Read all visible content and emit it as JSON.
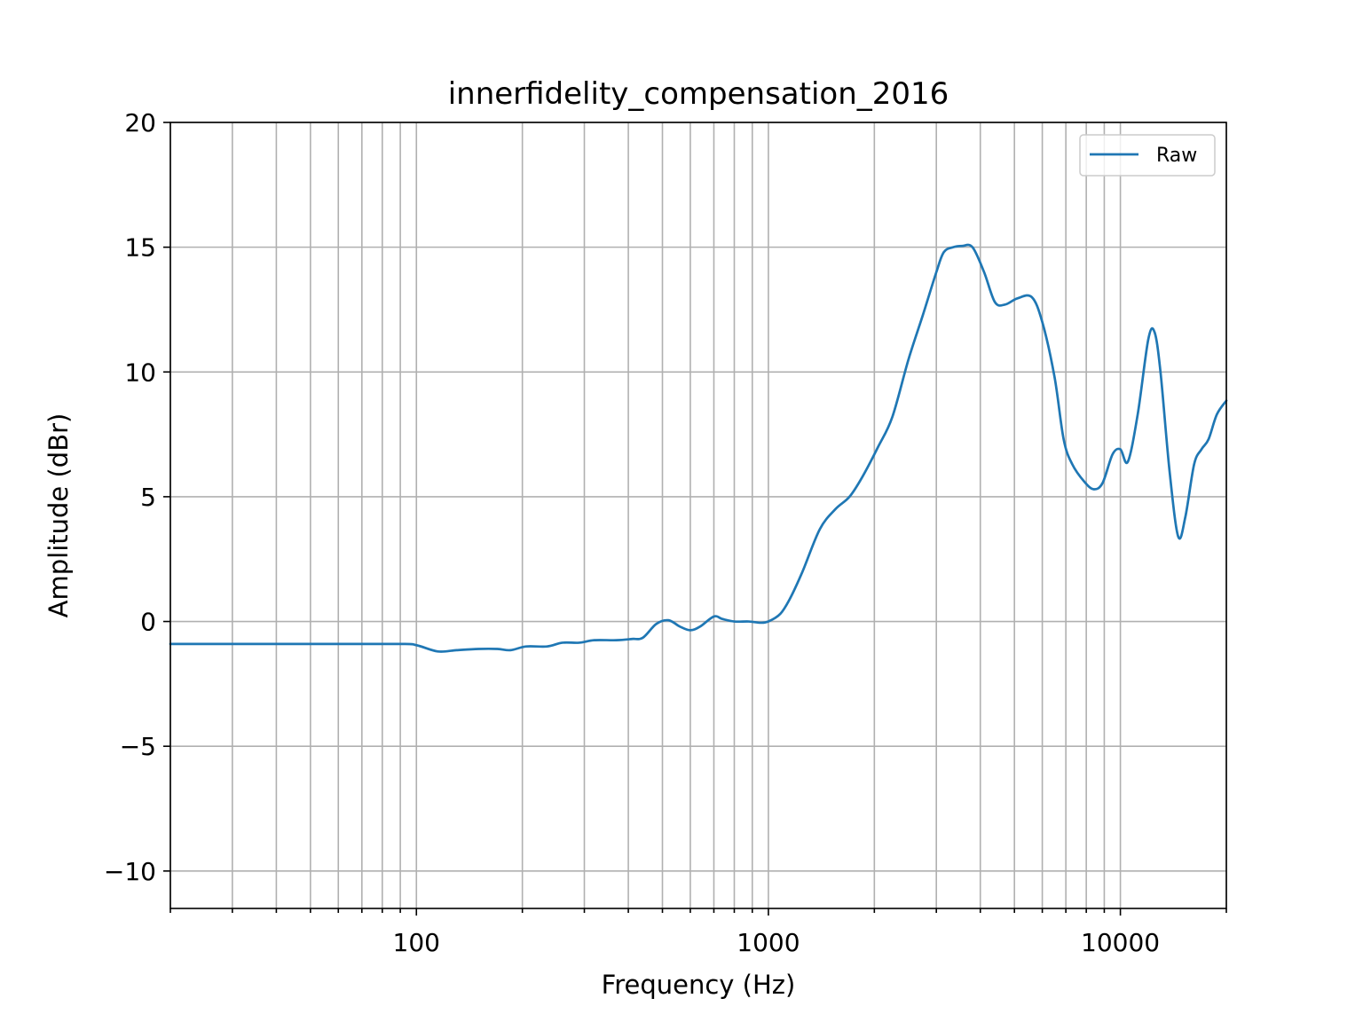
{
  "chart_data": {
    "type": "line",
    "title": "innerfidelity_compensation_2016",
    "xlabel": "Frequency (Hz)",
    "ylabel": "Amplitude (dBr)",
    "xscale": "log",
    "xlim": [
      20,
      20000
    ],
    "ylim": [
      -11.5,
      20
    ],
    "grid": true,
    "legend": {
      "position": "upper-right"
    },
    "x_tick_labels": [
      "100",
      "1000",
      "10000"
    ],
    "y_tick_labels": [
      "−10",
      "−5",
      "0",
      "5",
      "10",
      "15",
      "20"
    ],
    "colors": {
      "series": "#1f77b4",
      "grid": "#b0b0b0"
    },
    "series": [
      {
        "name": "Raw",
        "points": [
          [
            20,
            -0.9
          ],
          [
            50,
            -0.9
          ],
          [
            90,
            -0.9
          ],
          [
            100,
            -0.95
          ],
          [
            115,
            -1.2
          ],
          [
            130,
            -1.15
          ],
          [
            150,
            -1.1
          ],
          [
            170,
            -1.1
          ],
          [
            185,
            -1.15
          ],
          [
            205,
            -1.0
          ],
          [
            235,
            -1.0
          ],
          [
            260,
            -0.85
          ],
          [
            290,
            -0.85
          ],
          [
            320,
            -0.75
          ],
          [
            370,
            -0.75
          ],
          [
            410,
            -0.7
          ],
          [
            440,
            -0.65
          ],
          [
            480,
            -0.1
          ],
          [
            520,
            0.05
          ],
          [
            560,
            -0.2
          ],
          [
            600,
            -0.35
          ],
          [
            640,
            -0.2
          ],
          [
            700,
            0.2
          ],
          [
            740,
            0.1
          ],
          [
            800,
            0.0
          ],
          [
            880,
            0.0
          ],
          [
            950,
            -0.05
          ],
          [
            1000,
            0.0
          ],
          [
            1080,
            0.3
          ],
          [
            1150,
            0.9
          ],
          [
            1250,
            2.0
          ],
          [
            1400,
            3.7
          ],
          [
            1550,
            4.5
          ],
          [
            1700,
            5.0
          ],
          [
            1850,
            5.8
          ],
          [
            2050,
            7.0
          ],
          [
            2250,
            8.2
          ],
          [
            2500,
            10.5
          ],
          [
            2750,
            12.3
          ],
          [
            3000,
            14.0
          ],
          [
            3150,
            14.8
          ],
          [
            3350,
            15.0
          ],
          [
            3550,
            15.05
          ],
          [
            3800,
            15.0
          ],
          [
            4100,
            14.0
          ],
          [
            4400,
            12.8
          ],
          [
            4700,
            12.7
          ],
          [
            5100,
            12.95
          ],
          [
            5600,
            13.0
          ],
          [
            6000,
            12.0
          ],
          [
            6500,
            9.8
          ],
          [
            6900,
            7.3
          ],
          [
            7300,
            6.3
          ],
          [
            7900,
            5.6
          ],
          [
            8400,
            5.3
          ],
          [
            8900,
            5.55
          ],
          [
            9500,
            6.7
          ],
          [
            10000,
            6.9
          ],
          [
            10500,
            6.4
          ],
          [
            11200,
            8.3
          ],
          [
            12000,
            11.3
          ],
          [
            12500,
            11.6
          ],
          [
            13000,
            10.0
          ],
          [
            13800,
            6.0
          ],
          [
            14600,
            3.4
          ],
          [
            15300,
            4.2
          ],
          [
            16200,
            6.3
          ],
          [
            17000,
            6.9
          ],
          [
            17800,
            7.3
          ],
          [
            18800,
            8.3
          ],
          [
            20000,
            8.85
          ]
        ]
      }
    ]
  }
}
